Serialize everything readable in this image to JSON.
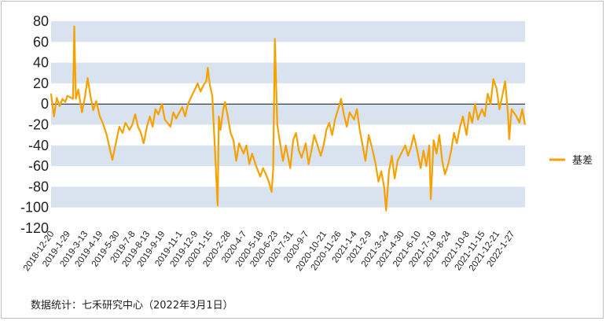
{
  "chart_data": {
    "type": "line",
    "title": "",
    "xlabel": "",
    "ylabel": "",
    "ylim": [
      -120,
      80
    ],
    "yticks": [
      80,
      60,
      40,
      20,
      0,
      -20,
      -40,
      -60,
      -80,
      -100,
      -120
    ],
    "grid": "alternating horizontal bands",
    "legend_position": "right",
    "x_tick_labels": [
      "2018-12-20",
      "2019-1-29",
      "2019-3-13",
      "2019-4-19",
      "2019-5-30",
      "2019-7-8",
      "2019-8-13",
      "2019-9-19",
      "2019-11-1",
      "2019-12-9",
      "2020-1-15",
      "2020-2-28",
      "2020-4-7",
      "2020-5-18",
      "2020-6-23",
      "2020-7-31",
      "2020-9-7",
      "2020-10-21",
      "2020-11-26",
      "2021-1-4",
      "2021-2-9",
      "2021-3-24",
      "2021-4-30",
      "2021-6-10",
      "2021-7-19",
      "2021-8-24",
      "2021-10-8",
      "2021-11-15",
      "2021-12-21",
      "2022-1-27"
    ],
    "series": [
      {
        "name": "基差",
        "color": "#f5a200",
        "points": [
          [
            "2018-12-20",
            10
          ],
          [
            "2018-12-27",
            -12
          ],
          [
            "2019-1-3",
            6
          ],
          [
            "2019-1-10",
            -2
          ],
          [
            "2019-1-17",
            5
          ],
          [
            "2019-1-24",
            2
          ],
          [
            "2019-1-29",
            8
          ],
          [
            "2019-2-12",
            5
          ],
          [
            "2019-2-15",
            75
          ],
          [
            "2019-2-19",
            5
          ],
          [
            "2019-2-25",
            14
          ],
          [
            "2019-3-1",
            4
          ],
          [
            "2019-3-6",
            -8
          ],
          [
            "2019-3-13",
            6
          ],
          [
            "2019-3-20",
            25
          ],
          [
            "2019-3-27",
            8
          ],
          [
            "2019-4-3",
            -6
          ],
          [
            "2019-4-10",
            3
          ],
          [
            "2019-4-19",
            -12
          ],
          [
            "2019-4-26",
            -18
          ],
          [
            "2019-5-6",
            -30
          ],
          [
            "2019-5-14",
            -44
          ],
          [
            "2019-5-20",
            -54
          ],
          [
            "2019-5-30",
            -35
          ],
          [
            "2019-6-6",
            -22
          ],
          [
            "2019-6-14",
            -28
          ],
          [
            "2019-6-21",
            -18
          ],
          [
            "2019-7-1",
            -25
          ],
          [
            "2019-7-8",
            -20
          ],
          [
            "2019-7-15",
            -10
          ],
          [
            "2019-7-22",
            -22
          ],
          [
            "2019-7-29",
            -28
          ],
          [
            "2019-8-5",
            -38
          ],
          [
            "2019-8-13",
            -22
          ],
          [
            "2019-8-20",
            -12
          ],
          [
            "2019-8-27",
            -22
          ],
          [
            "2019-9-3",
            -5
          ],
          [
            "2019-9-10",
            -10
          ],
          [
            "2019-9-19",
            0
          ],
          [
            "2019-9-26",
            -15
          ],
          [
            "2019-10-10",
            -22
          ],
          [
            "2019-10-17",
            -8
          ],
          [
            "2019-10-24",
            -14
          ],
          [
            "2019-11-1",
            -8
          ],
          [
            "2019-11-8",
            -3
          ],
          [
            "2019-11-15",
            -12
          ],
          [
            "2019-11-22",
            0
          ],
          [
            "2019-11-29",
            6
          ],
          [
            "2019-12-9",
            14
          ],
          [
            "2019-12-16",
            20
          ],
          [
            "2019-12-23",
            12
          ],
          [
            "2019-12-30",
            18
          ],
          [
            "2020-1-6",
            22
          ],
          [
            "2020-1-10",
            35
          ],
          [
            "2020-1-15",
            18
          ],
          [
            "2020-1-21",
            8
          ],
          [
            "2020-2-3",
            -98
          ],
          [
            "2020-2-6",
            -12
          ],
          [
            "2020-2-10",
            -25
          ],
          [
            "2020-2-17",
            -5
          ],
          [
            "2020-2-21",
            2
          ],
          [
            "2020-2-28",
            -12
          ],
          [
            "2020-3-6",
            -28
          ],
          [
            "2020-3-13",
            -35
          ],
          [
            "2020-3-20",
            -55
          ],
          [
            "2020-3-27",
            -38
          ],
          [
            "2020-4-7",
            -48
          ],
          [
            "2020-4-14",
            -40
          ],
          [
            "2020-4-21",
            -58
          ],
          [
            "2020-4-28",
            -48
          ],
          [
            "2020-5-8",
            -60
          ],
          [
            "2020-5-18",
            -70
          ],
          [
            "2020-5-25",
            -62
          ],
          [
            "2020-6-1",
            -68
          ],
          [
            "2020-6-8",
            -75
          ],
          [
            "2020-6-15",
            -85
          ],
          [
            "2020-6-19",
            -62
          ],
          [
            "2020-6-23",
            63
          ],
          [
            "2020-6-29",
            -20
          ],
          [
            "2020-7-6",
            -38
          ],
          [
            "2020-7-13",
            -55
          ],
          [
            "2020-7-20",
            -40
          ],
          [
            "2020-7-31",
            -62
          ],
          [
            "2020-8-7",
            -35
          ],
          [
            "2020-8-14",
            -28
          ],
          [
            "2020-8-21",
            -45
          ],
          [
            "2020-8-28",
            -52
          ],
          [
            "2020-9-7",
            -38
          ],
          [
            "2020-9-14",
            -58
          ],
          [
            "2020-9-21",
            -45
          ],
          [
            "2020-9-28",
            -30
          ],
          [
            "2020-10-14",
            -50
          ],
          [
            "2020-10-21",
            -40
          ],
          [
            "2020-10-28",
            -25
          ],
          [
            "2020-11-4",
            -18
          ],
          [
            "2020-11-11",
            -30
          ],
          [
            "2020-11-18",
            -15
          ],
          [
            "2020-11-26",
            -5
          ],
          [
            "2020-12-3",
            5
          ],
          [
            "2020-12-10",
            -10
          ],
          [
            "2020-12-17",
            -22
          ],
          [
            "2020-12-24",
            -8
          ],
          [
            "2021-1-4",
            -15
          ],
          [
            "2021-1-11",
            -5
          ],
          [
            "2021-1-18",
            -25
          ],
          [
            "2021-1-25",
            -40
          ],
          [
            "2021-2-1",
            -55
          ],
          [
            "2021-2-9",
            -30
          ],
          [
            "2021-2-19",
            -45
          ],
          [
            "2021-2-26",
            -58
          ],
          [
            "2021-3-5",
            -75
          ],
          [
            "2021-3-12",
            -65
          ],
          [
            "2021-3-19",
            -80
          ],
          [
            "2021-3-24",
            -103
          ],
          [
            "2021-3-31",
            -65
          ],
          [
            "2021-4-7",
            -50
          ],
          [
            "2021-4-14",
            -72
          ],
          [
            "2021-4-21",
            -55
          ],
          [
            "2021-4-30",
            -48
          ],
          [
            "2021-5-10",
            -40
          ],
          [
            "2021-5-17",
            -50
          ],
          [
            "2021-5-24",
            -42
          ],
          [
            "2021-5-31",
            -30
          ],
          [
            "2021-6-10",
            -48
          ],
          [
            "2021-6-17",
            -62
          ],
          [
            "2021-6-24",
            -45
          ],
          [
            "2021-7-1",
            -60
          ],
          [
            "2021-7-8",
            -40
          ],
          [
            "2021-7-12",
            -92
          ],
          [
            "2021-7-19",
            -35
          ],
          [
            "2021-7-26",
            -48
          ],
          [
            "2021-8-2",
            -30
          ],
          [
            "2021-8-9",
            -55
          ],
          [
            "2021-8-16",
            -68
          ],
          [
            "2021-8-24",
            -58
          ],
          [
            "2021-8-31",
            -45
          ],
          [
            "2021-9-7",
            -28
          ],
          [
            "2021-9-14",
            -38
          ],
          [
            "2021-9-22",
            -22
          ],
          [
            "2021-9-29",
            -12
          ],
          [
            "2021-10-8",
            -30
          ],
          [
            "2021-10-15",
            -8
          ],
          [
            "2021-10-22",
            -18
          ],
          [
            "2021-10-29",
            0
          ],
          [
            "2021-11-5",
            -15
          ],
          [
            "2021-11-15",
            -5
          ],
          [
            "2021-11-22",
            -12
          ],
          [
            "2021-11-29",
            10
          ],
          [
            "2021-12-6",
            0
          ],
          [
            "2021-12-13",
            24
          ],
          [
            "2021-12-21",
            15
          ],
          [
            "2021-12-28",
            -5
          ],
          [
            "2022-1-4",
            8
          ],
          [
            "2022-1-11",
            22
          ],
          [
            "2022-1-18",
            -10
          ],
          [
            "2022-1-21",
            -34
          ],
          [
            "2022-1-27",
            -5
          ],
          [
            "2022-2-8",
            -12
          ],
          [
            "2022-2-15",
            -18
          ],
          [
            "2022-2-22",
            -5
          ],
          [
            "2022-3-1",
            -20
          ]
        ]
      }
    ]
  },
  "legend": {
    "label": "基差"
  },
  "source_note": "数据统计：七禾研究中心（2022年3月1日）"
}
